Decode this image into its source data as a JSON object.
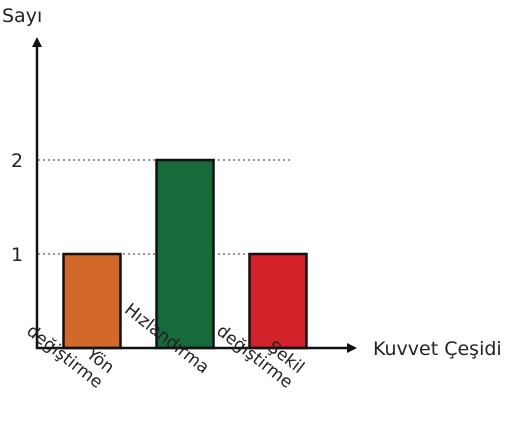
{
  "chart_data": {
    "type": "bar",
    "title": "",
    "xlabel": "Kuvvet Çeşidi",
    "ylabel": "Sayı",
    "categories": [
      [
        "Yön",
        "değiştirme"
      ],
      [
        "Hızlandırma"
      ],
      [
        "Şekil",
        "değiştirme"
      ]
    ],
    "values": [
      1,
      2,
      1
    ],
    "yticks": [
      1,
      2
    ],
    "ylim": [
      0,
      2.55
    ],
    "grid": "dotted horizontal reference lines at y-tick values",
    "legend": "none",
    "bar_colors": [
      "#d2692b",
      "#176b3a",
      "#d3222a"
    ]
  }
}
